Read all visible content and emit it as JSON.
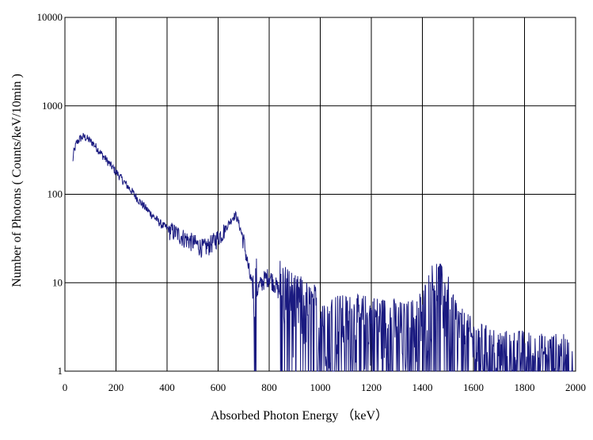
{
  "chart_data": {
    "type": "line",
    "title": "",
    "xlabel": "Absorbed Photon Energy （keV）",
    "ylabel": "Number  of Photons ( Counts/keV/10min )",
    "xlim": [
      0,
      2000
    ],
    "ylim": [
      1,
      10000
    ],
    "yscale": "log",
    "grid": true,
    "legend": "none",
    "x_ticks": [
      "0",
      "200",
      "400",
      "600",
      "800",
      "1000",
      "1200",
      "1400",
      "1600",
      "1800",
      "2000"
    ],
    "y_ticks": [
      "1",
      "10",
      "100",
      "1000",
      "10000"
    ],
    "line_color": "#1a1a80",
    "series": [
      {
        "x": [
          30,
          35,
          45,
          60,
          75,
          90,
          110,
          130,
          150,
          170,
          200,
          230,
          260,
          290,
          320,
          350,
          380,
          410,
          440,
          470,
          500,
          520,
          540,
          560,
          580,
          600,
          620,
          640,
          660,
          670,
          680,
          700,
          720,
          740,
          760,
          780,
          800,
          820,
          840,
          860,
          880,
          900,
          920,
          940,
          960,
          980,
          1000,
          1040,
          1080,
          1120,
          1160,
          1200,
          1240,
          1280,
          1320,
          1360,
          1400,
          1420,
          1440,
          1460,
          1480,
          1500,
          1520,
          1540,
          1560,
          1580,
          1600,
          1640,
          1680,
          1720,
          1760,
          1800,
          1850,
          1900,
          1950,
          1970,
          1990
        ],
        "y": [
          230,
          300,
          380,
          430,
          450,
          420,
          380,
          320,
          270,
          230,
          180,
          140,
          110,
          85,
          68,
          55,
          45,
          40,
          36,
          32,
          29,
          27,
          25,
          26,
          29,
          33,
          38,
          46,
          56,
          58,
          48,
          30,
          14,
          7,
          9,
          11,
          12,
          10,
          8,
          7,
          6,
          5,
          5,
          4.5,
          4,
          4,
          3.5,
          3.5,
          3,
          3,
          3,
          3,
          2.8,
          2.8,
          2.5,
          2.7,
          3.5,
          5,
          7,
          8,
          6,
          5,
          3.5,
          2.5,
          2,
          1.8,
          1.6,
          1.4,
          1.3,
          1.2,
          1.2,
          1.2,
          1.1,
          1.1,
          1.1,
          1,
          1
        ]
      }
    ]
  }
}
